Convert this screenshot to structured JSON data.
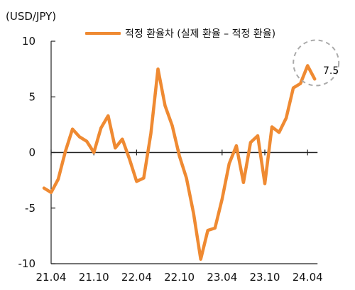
{
  "chart_data": {
    "type": "line",
    "unit_label": "(USD/JPY)",
    "ylim": [
      -10,
      10
    ],
    "yticks": [
      10,
      5,
      0,
      -5,
      -10
    ],
    "xticks": [
      "21.04",
      "21.10",
      "22.04",
      "22.10",
      "23.04",
      "23.10",
      "24.04"
    ],
    "series": [
      {
        "name": "적정 환율차 (실제 환율 – 적정 환율)",
        "color": "#ef8a32",
        "x": [
          "21.03",
          "21.04",
          "21.05",
          "21.06",
          "21.07",
          "21.08",
          "21.09",
          "21.10",
          "21.11",
          "21.12",
          "22.01",
          "22.02",
          "22.03",
          "22.04",
          "22.05",
          "22.06",
          "22.07",
          "22.08",
          "22.09",
          "22.10",
          "22.11",
          "22.12",
          "23.01",
          "23.02",
          "23.03",
          "23.04",
          "23.05",
          "23.06",
          "23.07",
          "23.08",
          "23.09",
          "23.10",
          "23.11",
          "23.12",
          "24.01",
          "24.02",
          "24.03",
          "24.04",
          "24.05"
        ],
        "values": [
          -3.2,
          -3.6,
          -2.4,
          0.1,
          2.1,
          1.4,
          1.0,
          0.0,
          2.2,
          3.3,
          0.4,
          1.2,
          -0.6,
          -2.6,
          -2.3,
          1.7,
          7.5,
          4.2,
          2.4,
          -0.3,
          -2.3,
          -5.5,
          -9.6,
          -7.0,
          -6.8,
          -4.2,
          -1.0,
          0.6,
          -2.7,
          0.9,
          1.5,
          -2.8,
          2.3,
          1.8,
          3.1,
          5.8,
          6.2,
          7.8,
          6.6
        ]
      }
    ],
    "annotation": {
      "label": "7.5"
    }
  }
}
